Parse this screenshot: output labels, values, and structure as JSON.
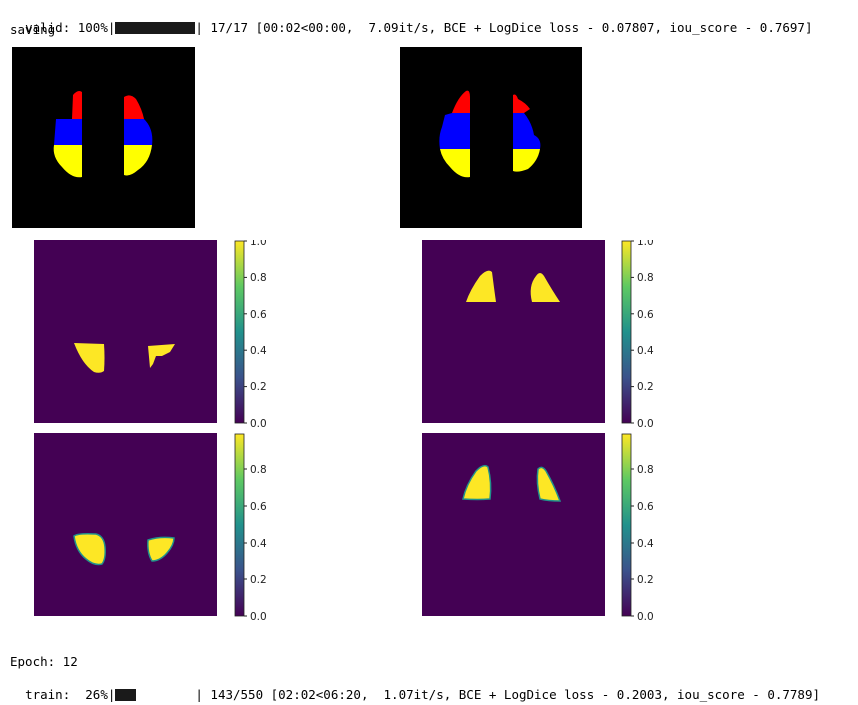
{
  "valid_line": {
    "prefix": "valid: 100%|",
    "progress": 1.0,
    "suffix": "| 17/17 [00:02<00:00,  7.09it/s, BCE + LogDice loss - 0.07807, iou_score - 0.7697]"
  },
  "saving_text": "saving",
  "epoch_text": "Epoch: 12",
  "train_line": {
    "prefix": "train:  26%|",
    "progress": 0.26,
    "suffix": "| 143/550 [02:02<06:20,  1.07it/s, BCE + LogDice loss - 0.2003, iou_score - 0.7789]"
  },
  "colorbars": [
    {
      "ticks": [
        "1.0",
        "0.8",
        "0.6",
        "0.4",
        "0.2",
        "0.0"
      ]
    },
    {
      "ticks": [
        "1.0",
        "0.8",
        "0.6",
        "0.4",
        "0.2",
        "0.0"
      ]
    },
    {
      "ticks": [
        "0.8",
        "0.6",
        "0.4",
        "0.2",
        "0.0"
      ]
    },
    {
      "ticks": [
        "0.8",
        "0.6",
        "0.4",
        "0.2",
        "0.0"
      ]
    }
  ],
  "colors": {
    "mask_red": "#ff0000",
    "mask_blue": "#0000ff",
    "mask_yellow": "#ffff00",
    "viridis_bg": "#440154",
    "viridis_hi": "#fde725"
  }
}
